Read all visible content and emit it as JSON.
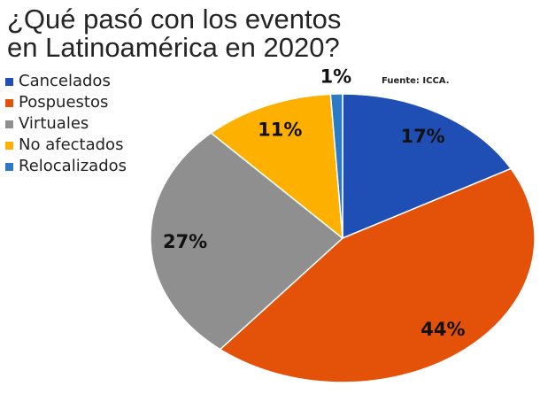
{
  "chart_data": {
    "type": "pie",
    "title": "¿Qué pasó con los eventos en Latinoamérica en 2020?",
    "categories": [
      "Cancelados",
      "Pospuestos",
      "Virtuales",
      "No afectados",
      "Relocalizados"
    ],
    "values": [
      17,
      44,
      27,
      11,
      1
    ],
    "data_labels": [
      "17%",
      "44%",
      "27%",
      "11%",
      "1%"
    ],
    "colors": [
      "#1F4EB4",
      "#E4520A",
      "#8F8F8F",
      "#FDB000",
      "#2B7AC6"
    ],
    "legend": "top-left"
  },
  "source": "Fuente: ICCA."
}
